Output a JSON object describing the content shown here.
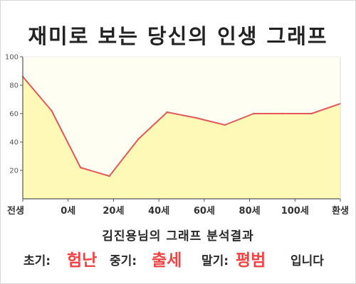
{
  "chart_data": {
    "type": "area",
    "title": "재미로 보는 당신의 인생 그래프",
    "subtitle": "김진용님의 그래프 분석결과",
    "x_categories": [
      "전생",
      "0세",
      "20세",
      "40세",
      "60세",
      "80세",
      "100세",
      "환생"
    ],
    "y_ticks": [
      20,
      40,
      60,
      80,
      100
    ],
    "ylim": [
      0,
      100
    ],
    "grid": false,
    "series": [
      {
        "points": [
          {
            "x": "전생",
            "y": 86
          },
          {
            "x": "0세",
            "y": 62
          },
          {
            "x": "",
            "y": 22
          },
          {
            "x": "",
            "y": 16
          },
          {
            "x": "",
            "y": 42
          },
          {
            "x": "",
            "y": 61
          },
          {
            "x": "",
            "y": 57
          },
          {
            "x": "",
            "y": 52
          },
          {
            "x": "",
            "y": 60
          },
          {
            "x": "",
            "y": 60
          },
          {
            "x": "",
            "y": 60
          },
          {
            "x": "환생",
            "y": 67
          }
        ]
      }
    ],
    "colors": {
      "line": "#e05a5a",
      "fill": "#fff9b8",
      "plot_bg": "#fffef2",
      "accent": "#f04444"
    }
  },
  "result": {
    "early_label": "초기:",
    "early_value": "험난",
    "middle_label": "중기:",
    "middle_value": "출세",
    "late_label": "말기:",
    "late_value": "평범",
    "ending": "입니다"
  }
}
